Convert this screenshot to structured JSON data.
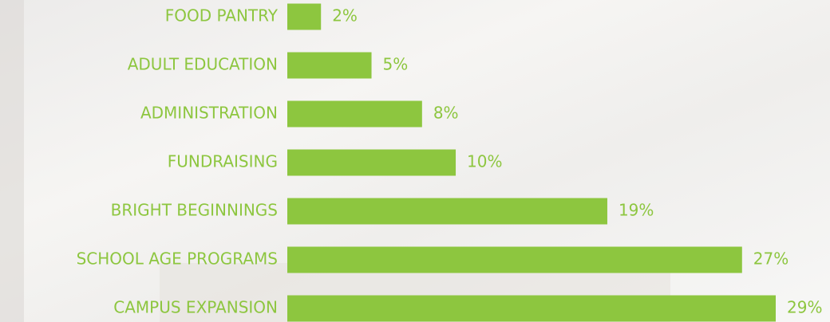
{
  "chart_data": {
    "type": "bar",
    "orientation": "horizontal",
    "categories": [
      "FOOD PANTRY",
      "ADULT EDUCATION",
      "ADMINISTRATION",
      "FUNDRAISING",
      "BRIGHT BEGINNINGS",
      "SCHOOL AGE PROGRAMS",
      "CAMPUS EXPANSION"
    ],
    "values": [
      2,
      5,
      8,
      10,
      19,
      27,
      29
    ],
    "value_labels": [
      "2%",
      "5%",
      "8%",
      "10%",
      "19%",
      "27%",
      "29%"
    ],
    "color": "#8dc63f"
  }
}
